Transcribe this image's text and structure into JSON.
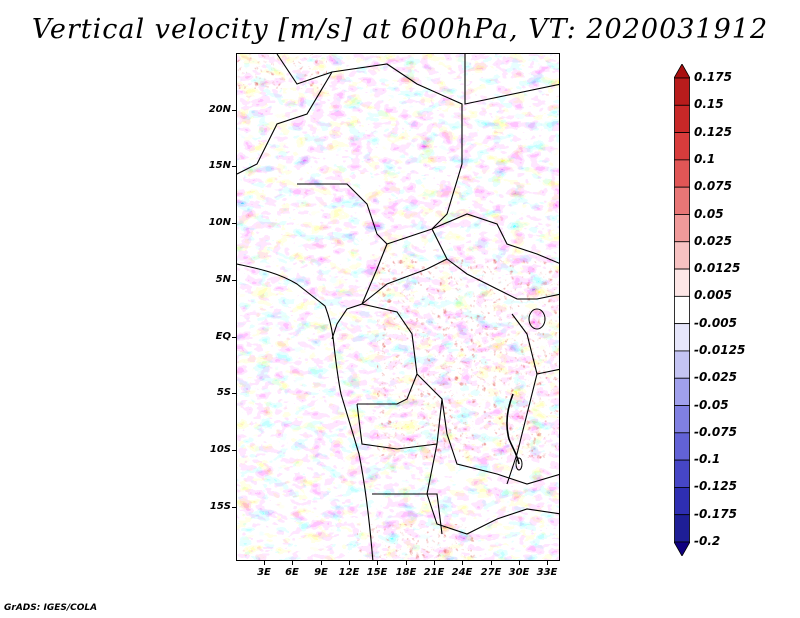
{
  "title": "Vertical velocity [m/s] at 600hPa, VT: 2020031912",
  "credit": "GrADS: IGES/COLA",
  "lat_labels": [
    "20N",
    "15N",
    "10N",
    "5N",
    "EQ",
    "5S",
    "10S",
    "15S"
  ],
  "lon_labels": [
    "3E",
    "6E",
    "9E",
    "12E",
    "15E",
    "18E",
    "21E",
    "24E",
    "27E",
    "30E",
    "33E"
  ],
  "colorbar": {
    "labels": [
      "0.175",
      "0.15",
      "0.125",
      "0.1",
      "0.075",
      "0.05",
      "0.025",
      "0.0125",
      "0.005",
      "-0.005",
      "-0.0125",
      "-0.025",
      "-0.05",
      "-0.075",
      "-0.1",
      "-0.125",
      "-0.175",
      "-0.2"
    ],
    "colors": [
      "#a81010",
      "#b81c1c",
      "#c82828",
      "#d83c3c",
      "#e05656",
      "#e87676",
      "#f09a9a",
      "#f7c2c2",
      "#fde6e6",
      "#ffffff",
      "#e6e6fb",
      "#c4c4f3",
      "#a0a0ec",
      "#8080e2",
      "#6262d6",
      "#4646c6",
      "#2e2eb2",
      "#1e1e96",
      "#100080"
    ]
  }
}
